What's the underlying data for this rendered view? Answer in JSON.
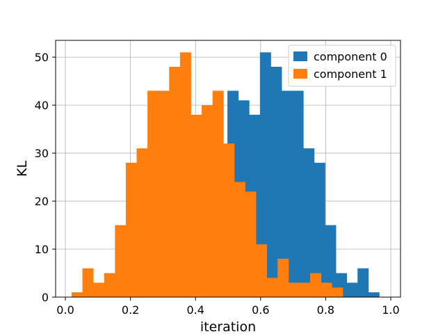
{
  "colors": {
    "background": "#ffffff",
    "grid": "#b0b0b0",
    "axes": "#000000"
  },
  "chart_data": {
    "type": "bar",
    "subtype": "overlapping histogram",
    "title": "",
    "xlabel": "iteration",
    "ylabel": "KL",
    "xlim": [
      -0.03,
      1.03
    ],
    "ylim": [
      0,
      53.5
    ],
    "xticks": [
      0.0,
      0.2,
      0.4,
      0.6,
      0.8,
      1.0
    ],
    "xtick_labels": [
      "0.0",
      "0.2",
      "0.4",
      "0.6",
      "0.8",
      "1.0"
    ],
    "yticks": [
      0,
      10,
      20,
      30,
      40,
      50
    ],
    "ytick_labels": [
      "0",
      "10",
      "20",
      "30",
      "40",
      "50"
    ],
    "grid": true,
    "legend_position": "top-right",
    "series": [
      {
        "name": "component 0",
        "color": "#1f77b4",
        "bin_width": 0.03333,
        "bin_edges_start": 0.498,
        "values": [
          43,
          41,
          38,
          51,
          48,
          43,
          43,
          31,
          28,
          15,
          5,
          3,
          6,
          1
        ]
      },
      {
        "name": "component 1",
        "color": "#ff7f0e",
        "bin_width": 0.03333,
        "bin_edges_start": 0.019,
        "values": [
          1,
          6,
          3,
          5,
          15,
          28,
          31,
          43,
          43,
          48,
          51,
          38,
          40,
          43,
          32,
          24,
          22,
          11,
          4,
          8,
          3,
          3,
          5,
          3,
          2
        ]
      }
    ]
  }
}
